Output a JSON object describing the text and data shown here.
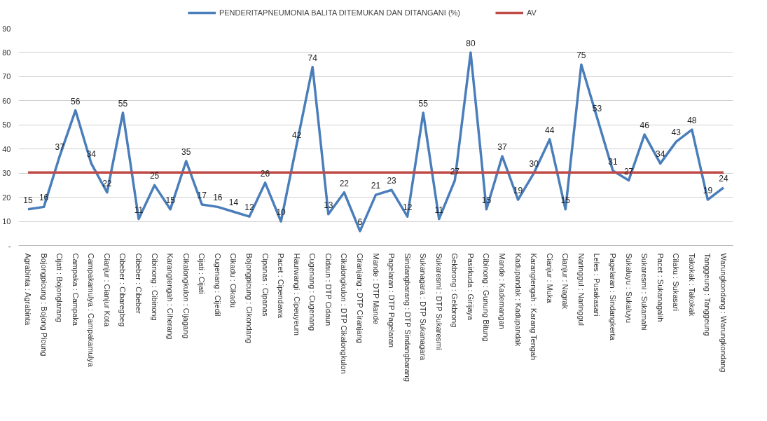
{
  "chart_data": {
    "type": "line",
    "categories": [
      "Agrabinta : Agrabinta",
      "Bojongpicung : Bojong Picung",
      "Cijati : Bojonglarang",
      "Campaka : Campaka",
      "Campakamulya : Campakamulya",
      "Cianjur : Cianjur Kota",
      "Cibeber : Cibaregbeg",
      "Cibeber : Cibeber",
      "Cibinong : Cibinong",
      "Karangtengah : Ciherang",
      "Cikalongkulon : Cijagang",
      "Cijati : Cijati",
      "Cugenang : Cijedil",
      "Cikadu : Cikadu",
      "Bojongpicung : Cikondang",
      "Cipanas : Cipanas",
      "Pacet : Cipendawa",
      "Haurwangi : Cipeuyeum",
      "Cugenang : Cugenang",
      "Cidaun : DTP Cidaun",
      "Cikalongkulon : DTP Cikalongkulon",
      "Ciranjang : DTP Ciranjang",
      "Mande : DTP Mande",
      "Pagelaran : DTP Pagelaran",
      "Sindangbarang : DTP Sindangbarang",
      "Sukanagara : DTP Sukanagara",
      "Sukaresmi : DTP Sukaresmi",
      "Gekbrong : Gekbrong",
      "Pasirkuda : Girijaya",
      "Cibinong : Gunung Bitung",
      "Mande : Kademangan",
      "Kadupandak : Kadupandak",
      "Karangtengah : Karang Tengah",
      "Cianjur : Muka",
      "Cianjur : Nagrak",
      "Naringgul : Naringgul",
      "Leles : Pusakasari",
      "Pagelaran : Sindangkerta",
      "Sukaluyu : Sukaluyu",
      "Sukaresmi : Sukamahi",
      "Pacet : Sukanagalih",
      "Cilaku : Sukasari",
      "Takokak : Takokak",
      "Tanggeung : Tanggeung",
      "Warungkondang : Warungkondang"
    ],
    "series": [
      {
        "name": "PENDERITAPNEUMONIA BALITA DITEMUKAN DAN DITANGANI (%)",
        "color": "#4a7ebb",
        "values": [
          15,
          16,
          37,
          56,
          34,
          22,
          55,
          11,
          25,
          15,
          35,
          17,
          16,
          14,
          12,
          26,
          10,
          42,
          74,
          13,
          22,
          6,
          21,
          23,
          12,
          55,
          11,
          27,
          80,
          15,
          37,
          19,
          30,
          44,
          15,
          75,
          53,
          31,
          27,
          46,
          34,
          43,
          48,
          19,
          24
        ],
        "value_labels": [
          "15",
          "16",
          "37",
          "56",
          "34",
          "22",
          "55",
          "11",
          "25",
          "15",
          "35",
          "17",
          "16",
          "14",
          "12",
          "26",
          "10",
          "42",
          "74",
          "13",
          "22",
          "6",
          "21",
          "23",
          "12",
          "55",
          "11",
          "27",
          "80",
          "15",
          "37",
          "19",
          "30",
          "44",
          "15",
          "75",
          "53",
          "31",
          "27",
          "46",
          "34",
          "43",
          "48",
          "19",
          "24"
        ]
      },
      {
        "name": "AV",
        "color": "#be4b48",
        "values": [
          30.3,
          30.3,
          30.3,
          30.3,
          30.3,
          30.3,
          30.3,
          30.3,
          30.3,
          30.3,
          30.3,
          30.3,
          30.3,
          30.3,
          30.3,
          30.3,
          30.3,
          30.3,
          30.3,
          30.3,
          30.3,
          30.3,
          30.3,
          30.3,
          30.3,
          30.3,
          30.3,
          30.3,
          30.3,
          30.3,
          30.3,
          30.3,
          30.3,
          30.3,
          30.3,
          30.3,
          30.3,
          30.3,
          30.3,
          30.3,
          30.3,
          30.3,
          30.3,
          30.3,
          30.3
        ]
      }
    ],
    "ylim": [
      0,
      90
    ],
    "yticks": [
      {
        "value": 0,
        "label": "-"
      },
      10,
      20,
      30,
      40,
      50,
      60,
      70,
      80,
      90
    ],
    "grid": "y",
    "legend": "top",
    "marker": "none",
    "line_style": "solid"
  }
}
